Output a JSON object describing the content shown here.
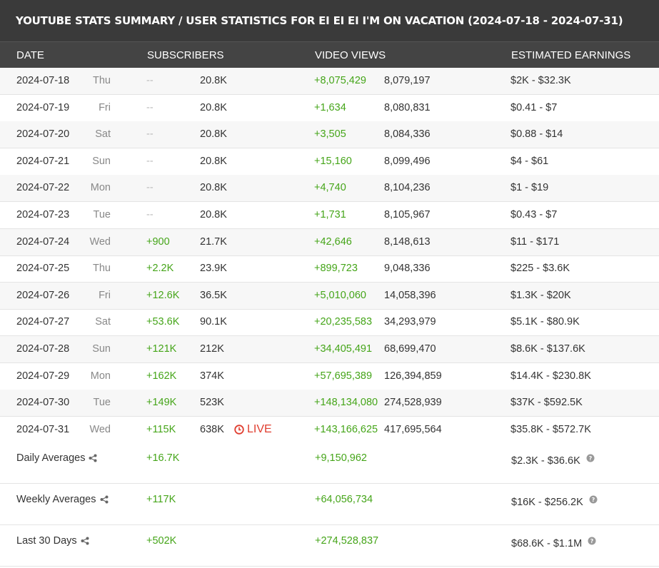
{
  "title": "YOUTUBE STATS SUMMARY / USER STATISTICS FOR EI EI EI I'M ON VACATION (2024-07-18 - 2024-07-31)",
  "columns": {
    "date": "DATE",
    "subscribers": "SUBSCRIBERS",
    "video_views": "VIDEO VIEWS",
    "earnings": "ESTIMATED EARNINGS"
  },
  "rows": [
    {
      "date": "2024-07-18",
      "day": "Thu",
      "sub_delta": "--",
      "sub_total": "20.8K",
      "view_delta": "+8,075,429",
      "view_total": "8,079,197",
      "earnings": "$2K  -  $32.3K"
    },
    {
      "date": "2024-07-19",
      "day": "Fri",
      "sub_delta": "--",
      "sub_total": "20.8K",
      "view_delta": "+1,634",
      "view_total": "8,080,831",
      "earnings": "$0.41  -  $7"
    },
    {
      "date": "2024-07-20",
      "day": "Sat",
      "sub_delta": "--",
      "sub_total": "20.8K",
      "view_delta": "+3,505",
      "view_total": "8,084,336",
      "earnings": "$0.88  -  $14"
    },
    {
      "date": "2024-07-21",
      "day": "Sun",
      "sub_delta": "--",
      "sub_total": "20.8K",
      "view_delta": "+15,160",
      "view_total": "8,099,496",
      "earnings": "$4  -  $61"
    },
    {
      "date": "2024-07-22",
      "day": "Mon",
      "sub_delta": "--",
      "sub_total": "20.8K",
      "view_delta": "+4,740",
      "view_total": "8,104,236",
      "earnings": "$1  -  $19"
    },
    {
      "date": "2024-07-23",
      "day": "Tue",
      "sub_delta": "--",
      "sub_total": "20.8K",
      "view_delta": "+1,731",
      "view_total": "8,105,967",
      "earnings": "$0.43  -  $7"
    },
    {
      "date": "2024-07-24",
      "day": "Wed",
      "sub_delta": "+900",
      "sub_total": "21.7K",
      "view_delta": "+42,646",
      "view_total": "8,148,613",
      "earnings": "$11  -  $171"
    },
    {
      "date": "2024-07-25",
      "day": "Thu",
      "sub_delta": "+2.2K",
      "sub_total": "23.9K",
      "view_delta": "+899,723",
      "view_total": "9,048,336",
      "earnings": "$225  -  $3.6K"
    },
    {
      "date": "2024-07-26",
      "day": "Fri",
      "sub_delta": "+12.6K",
      "sub_total": "36.5K",
      "view_delta": "+5,010,060",
      "view_total": "14,058,396",
      "earnings": "$1.3K  -  $20K"
    },
    {
      "date": "2024-07-27",
      "day": "Sat",
      "sub_delta": "+53.6K",
      "sub_total": "90.1K",
      "view_delta": "+20,235,583",
      "view_total": "34,293,979",
      "earnings": "$5.1K  -  $80.9K"
    },
    {
      "date": "2024-07-28",
      "day": "Sun",
      "sub_delta": "+121K",
      "sub_total": "212K",
      "view_delta": "+34,405,491",
      "view_total": "68,699,470",
      "earnings": "$8.6K  -  $137.6K"
    },
    {
      "date": "2024-07-29",
      "day": "Mon",
      "sub_delta": "+162K",
      "sub_total": "374K",
      "view_delta": "+57,695,389",
      "view_total": "126,394,859",
      "earnings": "$14.4K  -  $230.8K"
    },
    {
      "date": "2024-07-30",
      "day": "Tue",
      "sub_delta": "+149K",
      "sub_total": "523K",
      "view_delta": "+148,134,080",
      "view_total": "274,528,939",
      "earnings": "$37K  -  $592.5K"
    },
    {
      "date": "2024-07-31",
      "day": "Wed",
      "sub_delta": "+115K",
      "sub_total": "638K",
      "view_delta": "+143,166,625",
      "view_total": "417,695,564",
      "earnings": "$35.8K  -  $572.7K",
      "live": "LIVE"
    }
  ],
  "averages": [
    {
      "label": "Daily Averages",
      "sub": "+16.7K",
      "views": "+9,150,962",
      "earnings": "$2.3K  -  $36.6K"
    },
    {
      "label": "Weekly Averages",
      "sub": "+117K",
      "views": "+64,056,734",
      "earnings": "$16K  -  $256.2K"
    },
    {
      "label": "Last 30 Days",
      "sub": "+502K",
      "views": "+274,528,837",
      "earnings": "$68.6K  -  $1.1M"
    }
  ],
  "colors": {
    "positive": "#45a519",
    "live": "#e03d2f",
    "header_bg": "#444444",
    "title_bg": "#3a3a3a"
  },
  "icons": {
    "share": "share-icon",
    "help": "help-circle-icon",
    "live": "clock-icon"
  }
}
